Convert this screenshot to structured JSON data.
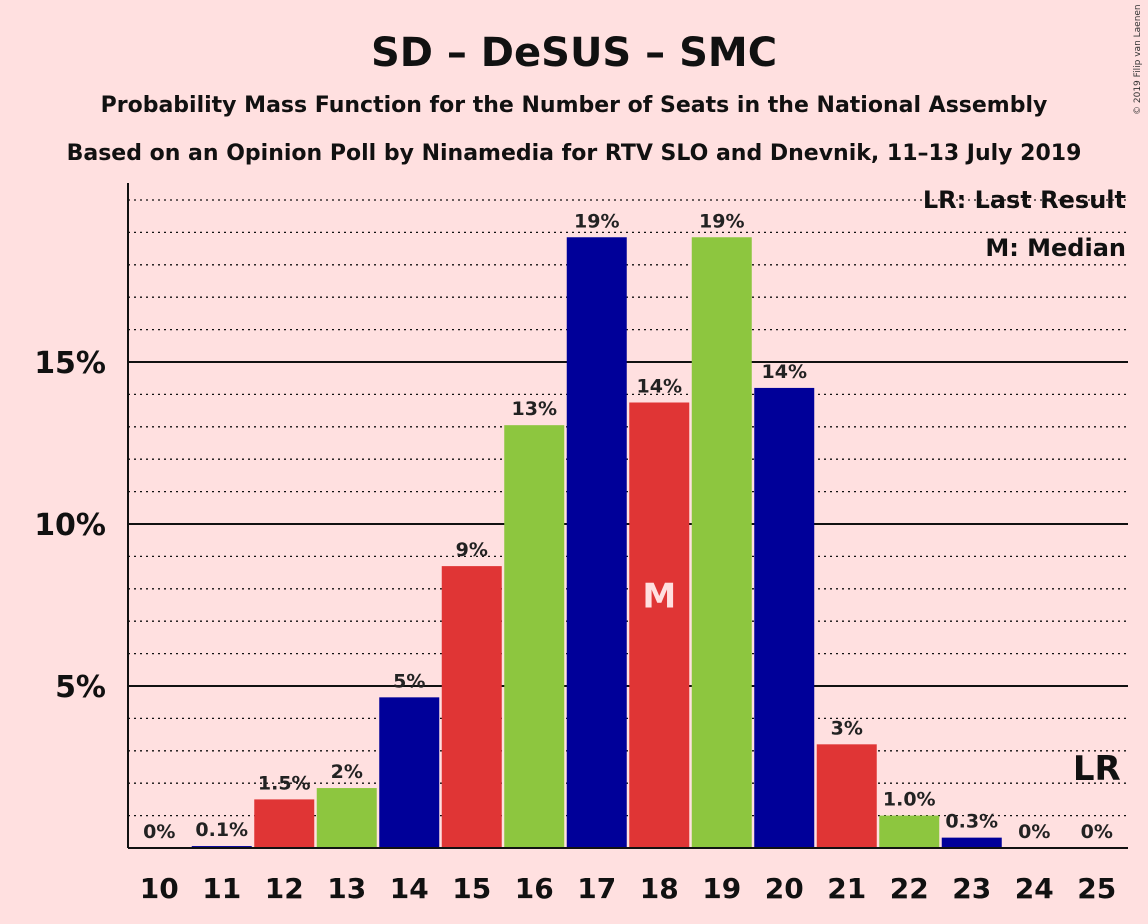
{
  "title": "SD – DeSUS – SMC",
  "subtitle1": "Probability Mass Function for the Number of Seats in the National Assembly",
  "subtitle2": "Based on an Opinion Poll by Ninamedia for RTV SLO and Dnevnik, 11–13 July 2019",
  "copyright": "© 2019 Filip van Laenen",
  "legend": {
    "lr": "LR: Last Result",
    "m": "M: Median"
  },
  "markers": {
    "median_label": "M",
    "median_seat": 18,
    "last_result_label": "LR",
    "last_result_seat": 25
  },
  "colors": {
    "background": "#FFE0E0",
    "blue": "#000099",
    "red": "#E03535",
    "green": "#8DC63F"
  },
  "chart_data": {
    "type": "bar",
    "xlabel": "",
    "ylabel": "",
    "ylim": [
      0,
      20.5
    ],
    "yticks": [
      {
        "value": 5,
        "label": "5%"
      },
      {
        "value": 10,
        "label": "10%"
      },
      {
        "value": 15,
        "label": "15%"
      }
    ],
    "minor_grid_step": 1,
    "categories": [
      "10",
      "11",
      "12",
      "13",
      "14",
      "15",
      "16",
      "17",
      "18",
      "19",
      "20",
      "21",
      "22",
      "23",
      "24",
      "25"
    ],
    "values": [
      0,
      0.06,
      1.5,
      1.85,
      4.65,
      8.7,
      13.05,
      18.85,
      13.75,
      18.85,
      14.2,
      3.2,
      1.0,
      0.32,
      0,
      0
    ],
    "labels": [
      "0%",
      "0.1%",
      "1.5%",
      "2%",
      "5%",
      "9%",
      "13%",
      "19%",
      "14%",
      "19%",
      "14%",
      "3%",
      "1.0%",
      "0.3%",
      "0%",
      "0%"
    ],
    "bar_colors": [
      "blue",
      "blue",
      "red",
      "green",
      "blue",
      "red",
      "green",
      "blue",
      "red",
      "green",
      "blue",
      "red",
      "green",
      "blue",
      "red",
      "green"
    ]
  }
}
